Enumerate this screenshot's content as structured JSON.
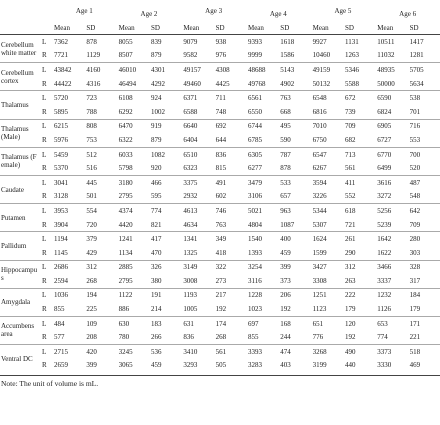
{
  "table": {
    "ages": [
      "Age 1",
      "Age 2",
      "Age 3",
      "Age 4",
      "Age 5",
      "Age 6"
    ],
    "subheaders": [
      "Mean",
      "SD",
      "Mean",
      "SD",
      "Mean",
      "SD",
      "Mean",
      "SD",
      "Mean",
      "SD",
      "Mean",
      "SD"
    ],
    "rows": [
      {
        "region": "Cerebellum white matter",
        "sides": [
          {
            "side": "L",
            "values": [
              7362,
              878,
              8055,
              839,
              9079,
              938,
              9393,
              1618,
              9927,
              1131,
              10511,
              1417
            ]
          },
          {
            "side": "R",
            "values": [
              7721,
              1129,
              8507,
              879,
              9582,
              976,
              9999,
              1586,
              10460,
              1263,
              11032,
              1281
            ]
          }
        ]
      },
      {
        "region": "Cerebellum cortex",
        "sides": [
          {
            "side": "L",
            "values": [
              43842,
              4160,
              46010,
              4301,
              49157,
              4308,
              48688,
              5143,
              49159,
              5346,
              48935,
              5705
            ]
          },
          {
            "side": "R",
            "values": [
              44422,
              4316,
              46494,
              4292,
              49460,
              4425,
              49768,
              4902,
              50132,
              5588,
              50000,
              5634
            ]
          }
        ]
      },
      {
        "region": "Thalamus",
        "sides": [
          {
            "side": "L",
            "values": [
              5720,
              723,
              6108,
              924,
              6371,
              711,
              6561,
              763,
              6548,
              672,
              6590,
              538
            ]
          },
          {
            "side": "R",
            "values": [
              5895,
              788,
              6292,
              1002,
              6588,
              748,
              6550,
              668,
              6816,
              739,
              6824,
              701
            ]
          }
        ]
      },
      {
        "region": "Thalamus (Male)",
        "sides": [
          {
            "side": "L",
            "values": [
              6215,
              808,
              6470,
              919,
              6640,
              692,
              6744,
              495,
              7010,
              709,
              6905,
              716
            ]
          },
          {
            "side": "R",
            "values": [
              5976,
              753,
              6322,
              879,
              6404,
              644,
              6785,
              590,
              6750,
              682,
              6727,
              553
            ]
          }
        ]
      },
      {
        "region": "Thalamus (Female)",
        "sides": [
          {
            "side": "L",
            "values": [
              5459,
              512,
              6033,
              1082,
              6510,
              836,
              6305,
              787,
              6547,
              713,
              6770,
              700
            ]
          },
          {
            "side": "R",
            "values": [
              5370,
              516,
              5798,
              920,
              6323,
              815,
              6277,
              878,
              6267,
              561,
              6499,
              520
            ]
          }
        ]
      },
      {
        "region": "Caudate",
        "sides": [
          {
            "side": "L",
            "values": [
              3041,
              445,
              3180,
              466,
              3375,
              491,
              3479,
              533,
              3594,
              411,
              3616,
              487
            ]
          },
          {
            "side": "R",
            "values": [
              3128,
              501,
              2795,
              595,
              2932,
              602,
              3106,
              657,
              3226,
              552,
              3272,
              548
            ]
          }
        ]
      },
      {
        "region": "Putamen",
        "sides": [
          {
            "side": "L",
            "values": [
              3953,
              554,
              4374,
              774,
              4613,
              746,
              5021,
              963,
              5344,
              618,
              5256,
              642
            ]
          },
          {
            "side": "R",
            "values": [
              3904,
              720,
              4420,
              821,
              4634,
              763,
              4804,
              1087,
              5307,
              721,
              5239,
              709
            ]
          }
        ]
      },
      {
        "region": "Pallidum",
        "sides": [
          {
            "side": "L",
            "values": [
              1194,
              379,
              1241,
              417,
              1341,
              349,
              1540,
              400,
              1624,
              261,
              1642,
              280
            ]
          },
          {
            "side": "R",
            "values": [
              1145,
              429,
              1134,
              470,
              1325,
              418,
              1393,
              459,
              1599,
              290,
              1622,
              303
            ]
          }
        ]
      },
      {
        "region": "Hippocampus",
        "sides": [
          {
            "side": "L",
            "values": [
              2686,
              312,
              2885,
              326,
              3149,
              322,
              3254,
              399,
              3427,
              312,
              3466,
              328
            ]
          },
          {
            "side": "R",
            "values": [
              2594,
              268,
              2795,
              380,
              3008,
              273,
              3116,
              373,
              3308,
              263,
              3337,
              317
            ]
          }
        ]
      },
      {
        "region": "Amygdala",
        "sides": [
          {
            "side": "L",
            "values": [
              1036,
              194,
              1122,
              191,
              1193,
              217,
              1228,
              206,
              1251,
              222,
              1232,
              184
            ]
          },
          {
            "side": "R",
            "values": [
              855,
              225,
              886,
              214,
              1005,
              192,
              1023,
              192,
              1123,
              179,
              1126,
              179
            ]
          }
        ]
      },
      {
        "region": "Accumbens area",
        "sides": [
          {
            "side": "L",
            "values": [
              484,
              109,
              630,
              183,
              631,
              174,
              697,
              168,
              651,
              120,
              653,
              171
            ]
          },
          {
            "side": "R",
            "values": [
              577,
              208,
              780,
              266,
              836,
              268,
              855,
              244,
              776,
              192,
              774,
              221
            ]
          }
        ]
      },
      {
        "region": "Ventral DC",
        "sides": [
          {
            "side": "L",
            "values": [
              2715,
              420,
              3245,
              536,
              3410,
              561,
              3393,
              474,
              3268,
              490,
              3373,
              518
            ]
          },
          {
            "side": "R",
            "values": [
              2659,
              399,
              3065,
              459,
              3293,
              505,
              3283,
              403,
              3199,
              440,
              3330,
              469
            ]
          }
        ]
      }
    ]
  },
  "note": "Note: The unit of volume is mL."
}
